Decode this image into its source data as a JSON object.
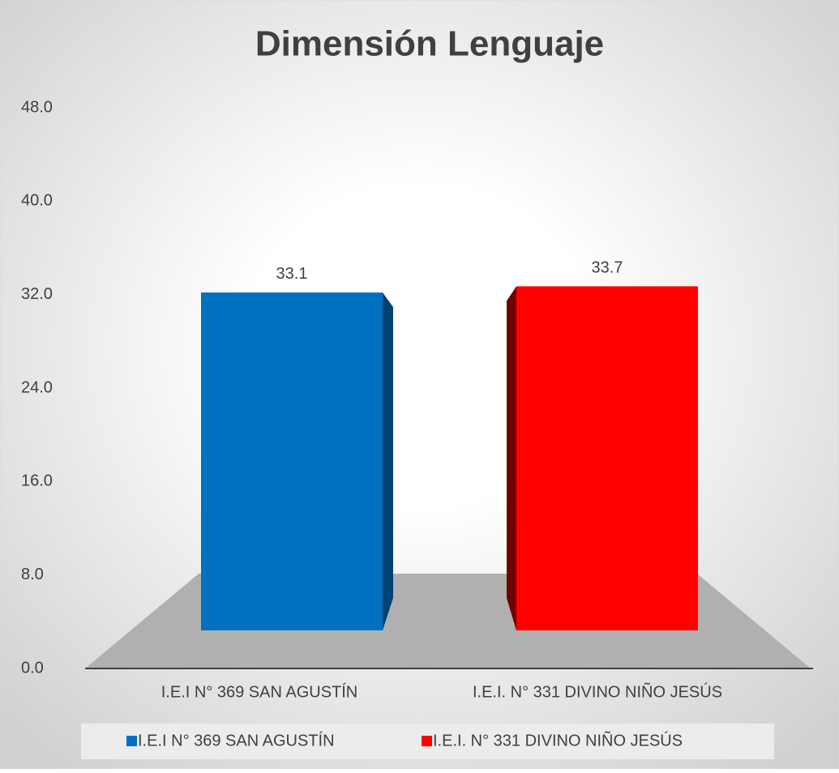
{
  "chart_data": {
    "type": "bar",
    "title": "Dimensión Lenguaje",
    "categories": [
      "I.E.I N° 369 SAN AGUSTÍN",
      "I.E.I. N° 331 DIVINO NIÑO JESÚS"
    ],
    "series": [
      {
        "name": "I.E.I N° 369 SAN AGUSTÍN",
        "color": "#0070c0",
        "values": [
          33.1,
          null
        ]
      },
      {
        "name": "I.E.I. N° 331 DIVINO NIÑO JESÚS",
        "color": "#ff0000",
        "values": [
          null,
          33.7
        ]
      }
    ],
    "ylim": [
      0,
      48
    ],
    "yticks": [
      {
        "value": 0,
        "label": "0.0"
      },
      {
        "value": 8,
        "label": "8.0"
      },
      {
        "value": 16,
        "label": "16.0"
      },
      {
        "value": 24,
        "label": "24.0"
      },
      {
        "value": 32,
        "label": "32.0"
      },
      {
        "value": 40,
        "label": "40.0"
      },
      {
        "value": 48,
        "label": "48.0"
      }
    ],
    "legend": "bottom"
  }
}
